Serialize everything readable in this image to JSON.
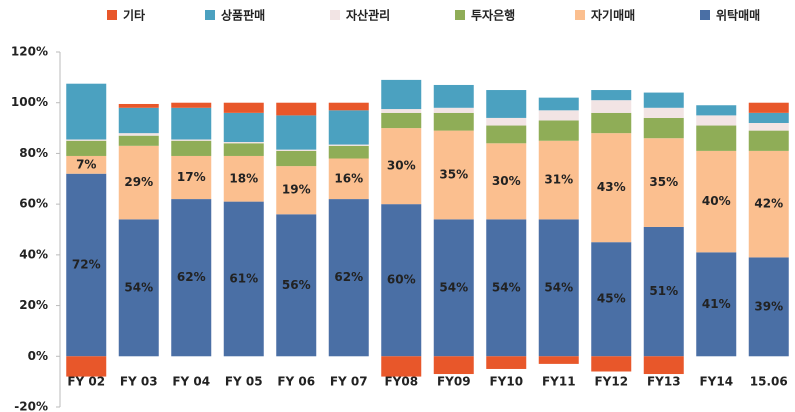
{
  "chart_data": {
    "type": "stacked_bar",
    "categories": [
      "FY 02",
      "FY 03",
      "FY 04",
      "FY 05",
      "FY 06",
      "FY 07",
      "FY08",
      "FY09",
      "FY10",
      "FY11",
      "FY12",
      "FY13",
      "FY14",
      "15.06"
    ],
    "series": [
      {
        "name": "기타",
        "color": "#e8572a",
        "values": [
          -8,
          1.5,
          2,
          4,
          5,
          3,
          -8,
          -7,
          -5,
          -3,
          -6,
          -7,
          0,
          4
        ]
      },
      {
        "name": "상품판매",
        "color": "#4ba1c0",
        "values": [
          22,
          10,
          12.5,
          11.5,
          13.5,
          13.5,
          11.5,
          9,
          11,
          5,
          4,
          6,
          4,
          4
        ]
      },
      {
        "name": "자산관리",
        "color": "#f2e4e4",
        "values": [
          0.5,
          1,
          0.5,
          0.5,
          0.5,
          0.5,
          1.5,
          2,
          3,
          4,
          5,
          4,
          4,
          3
        ]
      },
      {
        "name": "투자은행",
        "color": "#8fad57",
        "values": [
          6,
          4,
          6,
          5,
          6,
          5,
          6,
          7,
          7,
          8,
          8,
          8,
          10,
          8
        ]
      },
      {
        "name": "자기매매",
        "color": "#fbbf8f",
        "values": [
          7,
          29,
          17,
          18,
          19,
          16,
          30,
          35,
          30,
          31,
          43,
          35,
          40,
          42
        ],
        "value_labels": [
          "7%",
          "29%",
          "17%",
          "18%",
          "19%",
          "16%",
          "30%",
          "35%",
          "30%",
          "31%",
          "43%",
          "35%",
          "40%",
          "42%"
        ]
      },
      {
        "name": "위탁매매",
        "color": "#4a6fa5",
        "values": [
          72,
          54,
          62,
          61,
          56,
          62,
          60,
          54,
          54,
          54,
          45,
          51,
          41,
          39
        ],
        "value_labels": [
          "72%",
          "54%",
          "62%",
          "61%",
          "56%",
          "62%",
          "60%",
          "54%",
          "54%",
          "54%",
          "45%",
          "51%",
          "41%",
          "39%"
        ]
      }
    ],
    "ylim": [
      -20,
      120
    ],
    "yticks": [
      {
        "value": -20,
        "label": "-20%"
      },
      {
        "value": 0,
        "label": "0%"
      },
      {
        "value": 20,
        "label": "20%"
      },
      {
        "value": 40,
        "label": "40%"
      },
      {
        "value": 60,
        "label": "60%"
      },
      {
        "value": 80,
        "label": "80%"
      },
      {
        "value": 100,
        "label": "100%"
      },
      {
        "value": 120,
        "label": "120%"
      }
    ],
    "grid": false,
    "legend": "top"
  }
}
